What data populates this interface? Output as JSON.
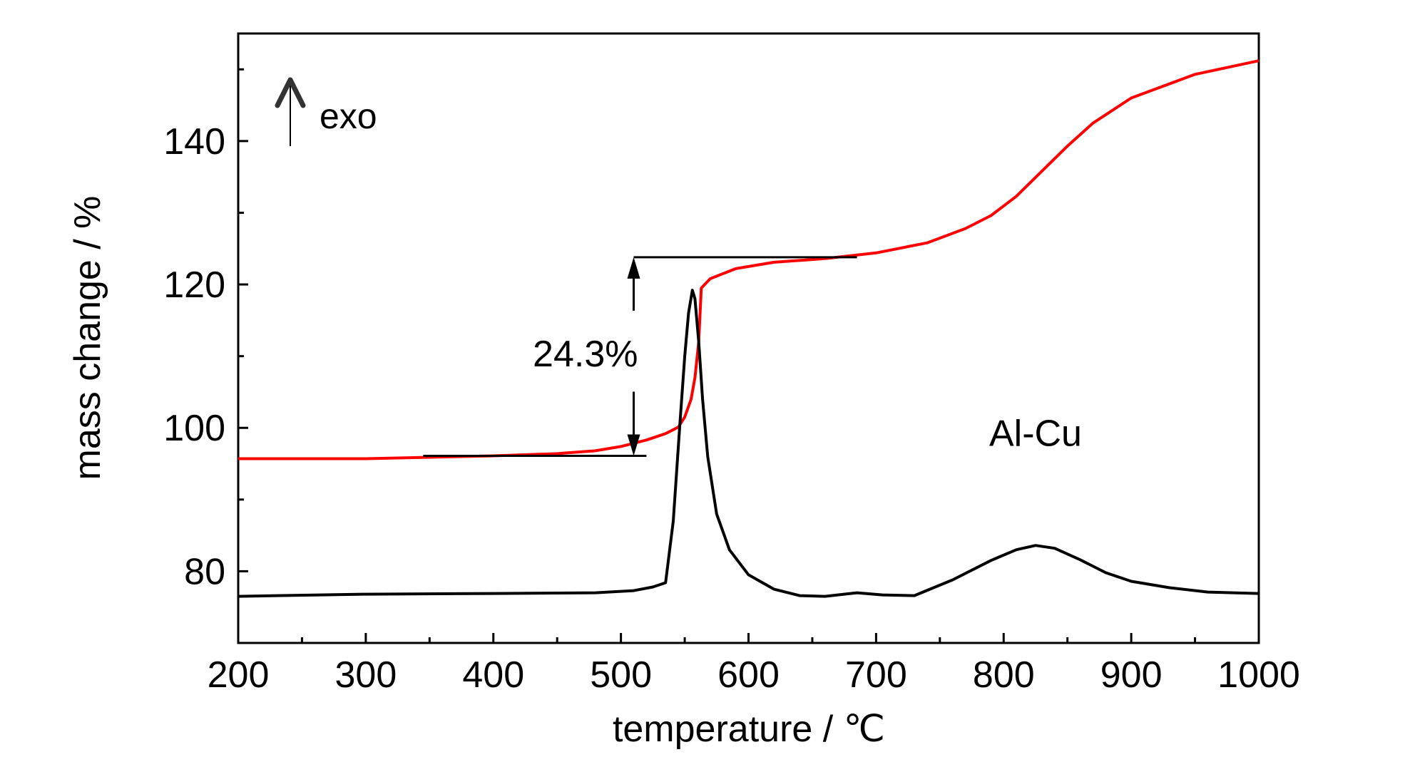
{
  "chart_data": {
    "type": "line",
    "title": "",
    "xlabel": "temperature / ℃",
    "ylabel": "mass change / %",
    "xlim": [
      200,
      1000
    ],
    "ylim": [
      70,
      155
    ],
    "xticks": [
      200,
      300,
      400,
      500,
      600,
      700,
      800,
      900,
      1000
    ],
    "yticks": [
      80,
      100,
      120,
      140
    ],
    "grid": false,
    "legend": "none",
    "series": [
      {
        "color": "#ff0000",
        "x": [
          200,
          250,
          300,
          350,
          400,
          450,
          480,
          500,
          520,
          535,
          545,
          550,
          555,
          558,
          561,
          563,
          570,
          590,
          620,
          660,
          700,
          740,
          770,
          790,
          810,
          830,
          850,
          870,
          900,
          950,
          1000
        ],
        "y": [
          95.7,
          95.7,
          95.7,
          95.9,
          96.1,
          96.4,
          96.8,
          97.4,
          98.3,
          99.2,
          100.1,
          101.5,
          104,
          107,
          112,
          119.5,
          120.8,
          122.2,
          123.1,
          123.6,
          124.4,
          125.8,
          127.8,
          129.6,
          132.3,
          135.8,
          139.3,
          142.5,
          146,
          149.3,
          151.2
        ]
      },
      {
        "color": "#000000",
        "x": [
          200,
          300,
          400,
          480,
          510,
          525,
          535,
          541,
          546,
          550,
          553,
          556,
          558,
          561,
          564,
          568,
          575,
          585,
          600,
          620,
          640,
          660,
          685,
          705,
          730,
          760,
          790,
          810,
          825,
          840,
          860,
          880,
          900,
          930,
          960,
          1000
        ],
        "y": [
          76.5,
          76.8,
          76.9,
          77,
          77.3,
          77.8,
          78.4,
          87,
          100,
          110,
          116,
          119.2,
          118,
          112,
          104,
          96,
          88,
          83,
          79.5,
          77.5,
          76.6,
          76.5,
          77,
          76.7,
          76.6,
          78.8,
          81.5,
          83,
          83.6,
          83.2,
          81.6,
          79.8,
          78.6,
          77.7,
          77.1,
          76.9
        ]
      }
    ],
    "annotations": {
      "mass_gain": "24.3%",
      "exo": "exo",
      "sample": "Al-Cu",
      "upper_level": 123.8,
      "lower_level": 96.1,
      "arrow_x": 510
    }
  }
}
